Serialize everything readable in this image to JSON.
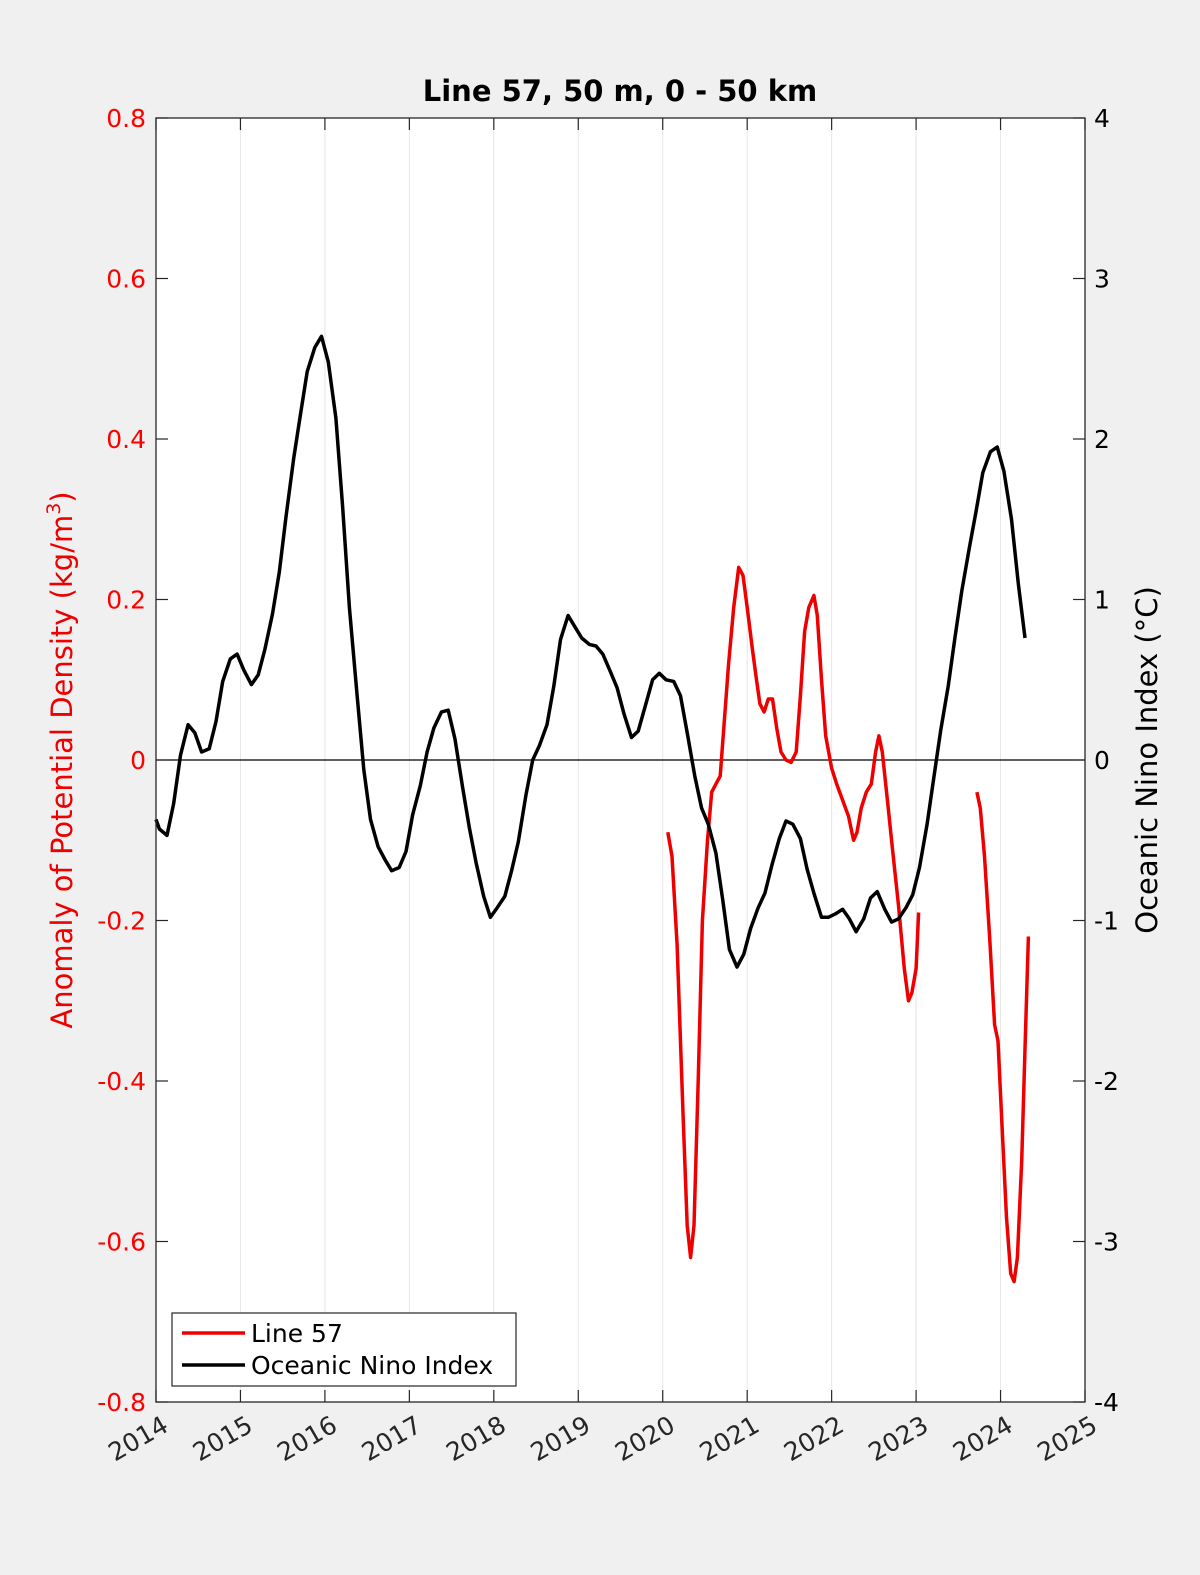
{
  "chart_data": {
    "type": "line",
    "title": "Line 57, 50 m, 0 - 50 km",
    "ylabel_left_prefix": "Anomaly of Potential Density (kg/m",
    "ylabel_left_superscript": "3",
    "ylabel_left_suffix": ")",
    "ylabel_right": "Oceanic Nino Index (°C)",
    "xlim": [
      2014,
      2025
    ],
    "ylim_left": [
      -0.8,
      0.8
    ],
    "ylim_right": [
      -4,
      4
    ],
    "x_ticks": [
      "2014",
      "2015",
      "2016",
      "2017",
      "2018",
      "2019",
      "2020",
      "2021",
      "2022",
      "2023",
      "2024",
      "2025"
    ],
    "y_left_ticks": [
      "-0.8",
      "-0.6",
      "-0.4",
      "-0.2",
      "0",
      "0.2",
      "0.4",
      "0.6",
      "0.8"
    ],
    "y_right_ticks": [
      "-4",
      "-3",
      "-2",
      "-1",
      "0",
      "1",
      "2",
      "3",
      "4"
    ],
    "grid": "vertical",
    "zero_line": true,
    "legend_position": "bottom-left",
    "colors": {
      "left_axis": "#ff0000",
      "right_axis": "#000000"
    },
    "series": [
      {
        "name": "Line 57",
        "color": "#ee0000",
        "axis": "left",
        "segments": [
          [
            [
              2020.06,
              -0.09
            ],
            [
              2020.11,
              -0.12
            ],
            [
              2020.17,
              -0.23
            ],
            [
              2020.24,
              -0.44
            ],
            [
              2020.29,
              -0.58
            ],
            [
              2020.33,
              -0.62
            ],
            [
              2020.37,
              -0.58
            ],
            [
              2020.42,
              -0.4
            ],
            [
              2020.47,
              -0.2
            ],
            [
              2020.53,
              -0.1
            ],
            [
              2020.58,
              -0.04
            ],
            [
              2020.63,
              -0.03
            ],
            [
              2020.68,
              -0.02
            ],
            [
              2020.73,
              0.05
            ],
            [
              2020.78,
              0.12
            ],
            [
              2020.84,
              0.19
            ],
            [
              2020.9,
              0.24
            ],
            [
              2020.95,
              0.23
            ],
            [
              2021.0,
              0.19
            ],
            [
              2021.06,
              0.14
            ],
            [
              2021.11,
              0.1
            ],
            [
              2021.15,
              0.07
            ],
            [
              2021.2,
              0.06
            ],
            [
              2021.25,
              0.076
            ],
            [
              2021.3,
              0.076
            ],
            [
              2021.35,
              0.04
            ],
            [
              2021.4,
              0.01
            ],
            [
              2021.46,
              0.0
            ],
            [
              2021.52,
              -0.003
            ],
            [
              2021.58,
              0.01
            ],
            [
              2021.63,
              0.08
            ],
            [
              2021.68,
              0.16
            ],
            [
              2021.73,
              0.19
            ],
            [
              2021.79,
              0.205
            ],
            [
              2021.83,
              0.18
            ],
            [
              2021.88,
              0.1
            ],
            [
              2021.93,
              0.03
            ],
            [
              2022.0,
              -0.01
            ],
            [
              2022.06,
              -0.03
            ],
            [
              2022.13,
              -0.05
            ],
            [
              2022.2,
              -0.07
            ],
            [
              2022.26,
              -0.1
            ],
            [
              2022.3,
              -0.09
            ],
            [
              2022.35,
              -0.06
            ],
            [
              2022.41,
              -0.04
            ],
            [
              2022.47,
              -0.03
            ],
            [
              2022.52,
              0.01
            ],
            [
              2022.56,
              0.03
            ],
            [
              2022.6,
              0.01
            ],
            [
              2022.66,
              -0.05
            ],
            [
              2022.72,
              -0.11
            ],
            [
              2022.79,
              -0.18
            ],
            [
              2022.86,
              -0.26
            ],
            [
              2022.91,
              -0.3
            ],
            [
              2022.95,
              -0.29
            ],
            [
              2023.0,
              -0.26
            ],
            [
              2023.03,
              -0.19
            ]
          ],
          [
            [
              2023.72,
              -0.04
            ],
            [
              2023.76,
              -0.06
            ],
            [
              2023.81,
              -0.12
            ],
            [
              2023.87,
              -0.22
            ],
            [
              2023.93,
              -0.33
            ],
            [
              2023.97,
              -0.35
            ],
            [
              2024.02,
              -0.46
            ],
            [
              2024.07,
              -0.57
            ],
            [
              2024.12,
              -0.64
            ],
            [
              2024.16,
              -0.65
            ],
            [
              2024.2,
              -0.62
            ],
            [
              2024.25,
              -0.5
            ],
            [
              2024.29,
              -0.36
            ],
            [
              2024.33,
              -0.22
            ]
          ]
        ]
      },
      {
        "name": "Oceanic Nino Index",
        "color": "#000000",
        "axis": "right",
        "segments": [
          [
            [
              2014.0,
              -0.37
            ],
            [
              2014.04,
              -0.43
            ],
            [
              2014.13,
              -0.47
            ],
            [
              2014.21,
              -0.27
            ],
            [
              2014.29,
              0.03
            ],
            [
              2014.38,
              0.22
            ],
            [
              2014.46,
              0.17
            ],
            [
              2014.54,
              0.05
            ],
            [
              2014.63,
              0.07
            ],
            [
              2014.71,
              0.24
            ],
            [
              2014.79,
              0.49
            ],
            [
              2014.88,
              0.63
            ],
            [
              2014.96,
              0.66
            ],
            [
              2015.04,
              0.56
            ],
            [
              2015.13,
              0.47
            ],
            [
              2015.21,
              0.53
            ],
            [
              2015.29,
              0.69
            ],
            [
              2015.38,
              0.91
            ],
            [
              2015.46,
              1.17
            ],
            [
              2015.54,
              1.52
            ],
            [
              2015.63,
              1.88
            ],
            [
              2015.71,
              2.15
            ],
            [
              2015.79,
              2.42
            ],
            [
              2015.88,
              2.57
            ],
            [
              2015.96,
              2.64
            ],
            [
              2016.04,
              2.48
            ],
            [
              2016.13,
              2.13
            ],
            [
              2016.21,
              1.58
            ],
            [
              2016.29,
              0.95
            ],
            [
              2016.38,
              0.41
            ],
            [
              2016.46,
              -0.06
            ],
            [
              2016.54,
              -0.37
            ],
            [
              2016.63,
              -0.54
            ],
            [
              2016.71,
              -0.62
            ],
            [
              2016.79,
              -0.69
            ],
            [
              2016.88,
              -0.67
            ],
            [
              2016.96,
              -0.57
            ],
            [
              2017.04,
              -0.34
            ],
            [
              2017.13,
              -0.16
            ],
            [
              2017.21,
              0.05
            ],
            [
              2017.29,
              0.2
            ],
            [
              2017.38,
              0.3
            ],
            [
              2017.46,
              0.31
            ],
            [
              2017.54,
              0.13
            ],
            [
              2017.63,
              -0.17
            ],
            [
              2017.71,
              -0.42
            ],
            [
              2017.79,
              -0.64
            ],
            [
              2017.88,
              -0.85
            ],
            [
              2017.96,
              -0.98
            ],
            [
              2018.04,
              -0.92
            ],
            [
              2018.13,
              -0.85
            ],
            [
              2018.21,
              -0.69
            ],
            [
              2018.29,
              -0.51
            ],
            [
              2018.38,
              -0.22
            ],
            [
              2018.46,
              0.0
            ],
            [
              2018.54,
              0.09
            ],
            [
              2018.63,
              0.22
            ],
            [
              2018.71,
              0.46
            ],
            [
              2018.79,
              0.75
            ],
            [
              2018.88,
              0.9
            ],
            [
              2018.96,
              0.83
            ],
            [
              2019.04,
              0.76
            ],
            [
              2019.13,
              0.72
            ],
            [
              2019.21,
              0.71
            ],
            [
              2019.29,
              0.66
            ],
            [
              2019.38,
              0.55
            ],
            [
              2019.46,
              0.45
            ],
            [
              2019.54,
              0.29
            ],
            [
              2019.63,
              0.14
            ],
            [
              2019.71,
              0.18
            ],
            [
              2019.79,
              0.33
            ],
            [
              2019.88,
              0.5
            ],
            [
              2019.96,
              0.54
            ],
            [
              2020.04,
              0.5
            ],
            [
              2020.13,
              0.49
            ],
            [
              2020.21,
              0.4
            ],
            [
              2020.29,
              0.17
            ],
            [
              2020.38,
              -0.1
            ],
            [
              2020.46,
              -0.3
            ],
            [
              2020.54,
              -0.4
            ],
            [
              2020.63,
              -0.58
            ],
            [
              2020.71,
              -0.87
            ],
            [
              2020.79,
              -1.18
            ],
            [
              2020.88,
              -1.29
            ],
            [
              2020.96,
              -1.21
            ],
            [
              2021.04,
              -1.05
            ],
            [
              2021.13,
              -0.92
            ],
            [
              2021.21,
              -0.83
            ],
            [
              2021.29,
              -0.66
            ],
            [
              2021.38,
              -0.49
            ],
            [
              2021.46,
              -0.38
            ],
            [
              2021.54,
              -0.4
            ],
            [
              2021.63,
              -0.49
            ],
            [
              2021.71,
              -0.68
            ],
            [
              2021.79,
              -0.83
            ],
            [
              2021.88,
              -0.98
            ],
            [
              2021.96,
              -0.98
            ],
            [
              2022.04,
              -0.96
            ],
            [
              2022.13,
              -0.93
            ],
            [
              2022.21,
              -0.99
            ],
            [
              2022.29,
              -1.07
            ],
            [
              2022.38,
              -0.99
            ],
            [
              2022.46,
              -0.86
            ],
            [
              2022.54,
              -0.82
            ],
            [
              2022.63,
              -0.93
            ],
            [
              2022.71,
              -1.01
            ],
            [
              2022.79,
              -0.99
            ],
            [
              2022.88,
              -0.92
            ],
            [
              2022.96,
              -0.84
            ],
            [
              2023.04,
              -0.67
            ],
            [
              2023.13,
              -0.4
            ],
            [
              2023.21,
              -0.11
            ],
            [
              2023.29,
              0.18
            ],
            [
              2023.38,
              0.46
            ],
            [
              2023.46,
              0.76
            ],
            [
              2023.54,
              1.05
            ],
            [
              2023.63,
              1.32
            ],
            [
              2023.71,
              1.55
            ],
            [
              2023.79,
              1.79
            ],
            [
              2023.88,
              1.92
            ],
            [
              2023.96,
              1.95
            ],
            [
              2024.04,
              1.8
            ],
            [
              2024.13,
              1.5
            ],
            [
              2024.21,
              1.1
            ],
            [
              2024.29,
              0.76
            ]
          ]
        ]
      }
    ]
  }
}
